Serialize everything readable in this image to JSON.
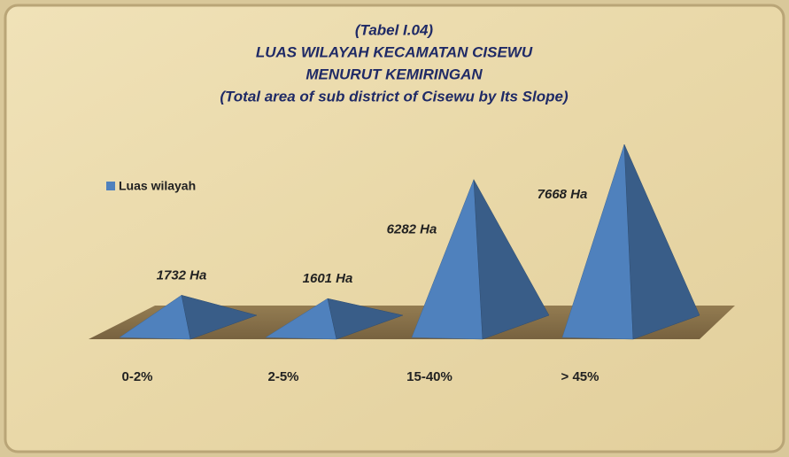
{
  "chart_data": {
    "type": "pyramid",
    "title": "(Tabel I.04)",
    "subtitle": [
      "LUAS WILAYAH KECAMATAN CISEWU",
      "MENURUT KEMIRINGAN",
      "(Total area of sub district of Cisewu by Its Slope)"
    ],
    "categories": [
      "0-2%",
      "2-5%",
      "15-40%",
      "> 45%"
    ],
    "series": [
      {
        "name": "Luas wilayah",
        "color": "#4f81bd",
        "values": [
          1732,
          1601,
          6282,
          7668
        ],
        "value_labels": [
          "1732 Ha",
          "1601 Ha",
          "6282 Ha",
          "7668 Ha"
        ]
      }
    ],
    "legend": "left"
  }
}
